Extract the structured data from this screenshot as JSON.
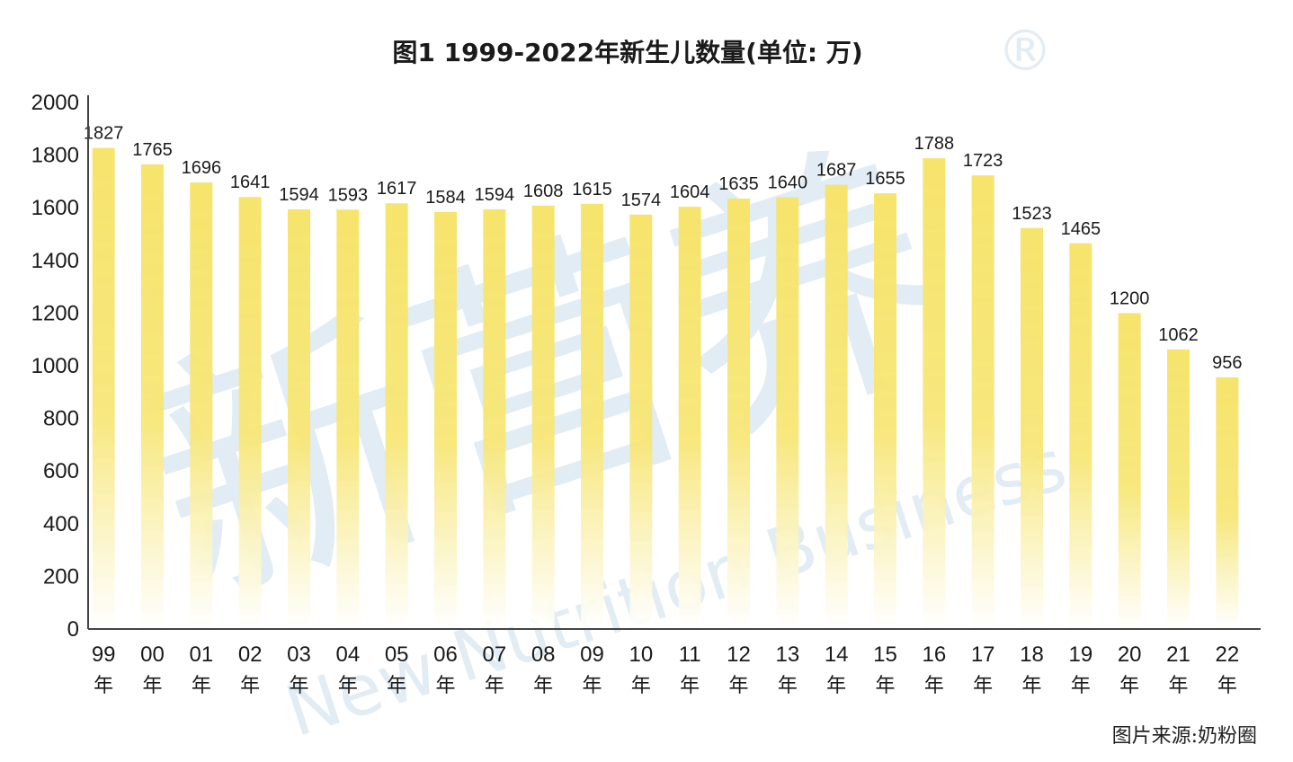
{
  "chart_data": {
    "type": "bar",
    "title": "图1 1999-2022年新生儿数量(单位: 万)",
    "categories": [
      "99",
      "00",
      "01",
      "02",
      "03",
      "04",
      "05",
      "06",
      "07",
      "08",
      "09",
      "10",
      "11",
      "12",
      "13",
      "14",
      "15",
      "16",
      "17",
      "18",
      "19",
      "20",
      "21",
      "22"
    ],
    "category_suffix": "年",
    "values": [
      1827,
      1765,
      1696,
      1641,
      1594,
      1593,
      1617,
      1584,
      1594,
      1608,
      1615,
      1574,
      1604,
      1635,
      1640,
      1687,
      1655,
      1788,
      1723,
      1523,
      1465,
      1200,
      1062,
      956
    ],
    "ylim": [
      0,
      2000
    ],
    "yticks": [
      0,
      200,
      400,
      600,
      800,
      1000,
      1200,
      1400,
      1600,
      1800,
      2000
    ],
    "grid": false,
    "bar_color": "#f5e36a",
    "axis_color": "#444444"
  },
  "source": "图片来源:奶粉圈",
  "watermark": {
    "cn": "新营养",
    "en": "New Nutrition Business",
    "registered": "®"
  }
}
